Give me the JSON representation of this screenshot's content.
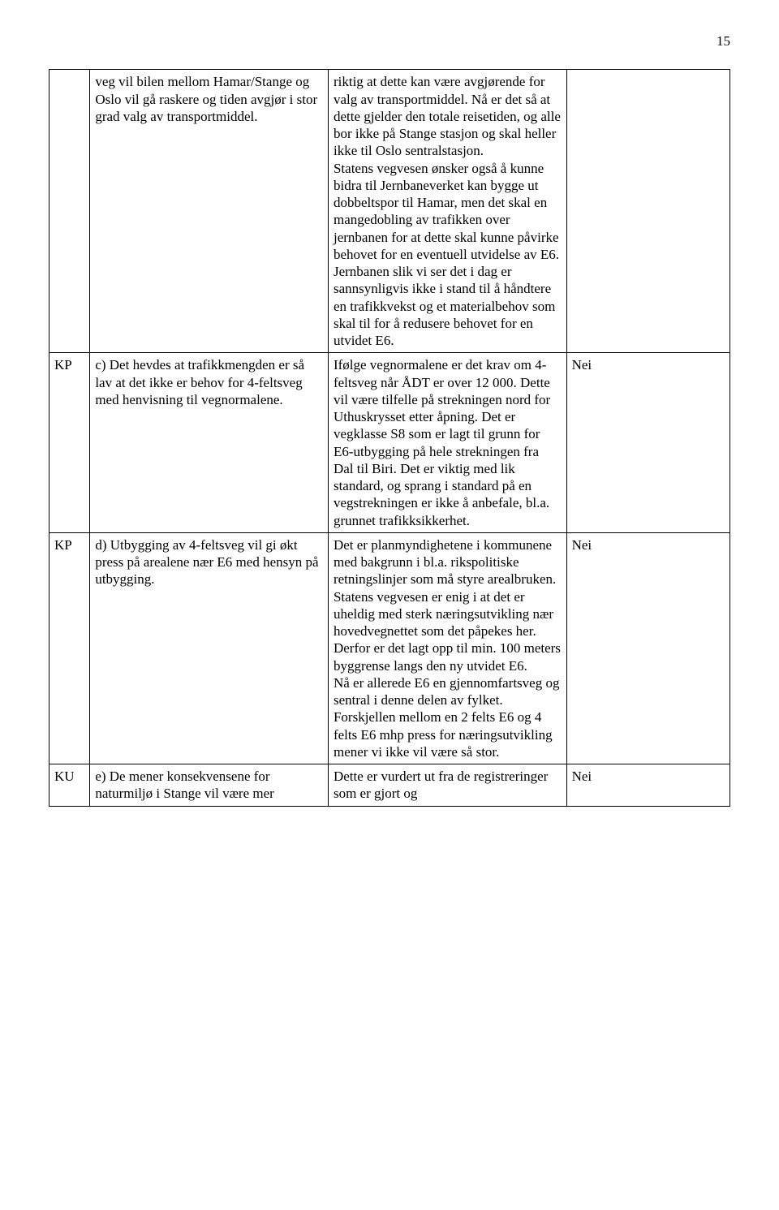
{
  "page_number": "15",
  "rows": [
    {
      "col0": "",
      "col1": "veg vil bilen mellom Hamar/Stange og Oslo vil gå raskere og tiden avgjør i stor grad valg av transportmiddel.",
      "col2": "riktig at dette kan være avgjørende for valg av transportmiddel. Nå er det så at dette gjelder den totale reisetiden, og alle bor ikke på Stange stasjon og skal heller ikke til Oslo sentralstasjon.\nStatens vegvesen ønsker også å kunne bidra til Jernbaneverket kan bygge ut dobbeltspor til Hamar, men det skal en mangedobling av trafikken over jernbanen for at dette skal kunne påvirke behovet for en eventuell utvidelse av E6. Jernbanen slik vi ser det i dag er sannsynligvis ikke i stand til å håndtere en trafikkvekst og et materialbehov som skal til for å redusere behovet for en utvidet E6.",
      "col3": ""
    },
    {
      "col0": "KP",
      "col1": "c) Det hevdes at trafikkmengden er så lav at det ikke er behov for 4-feltsveg med henvisning til vegnormalene.",
      "col2": "Ifølge vegnormalene er det krav om 4-feltsveg når ÅDT er over 12 000. Dette vil være tilfelle på strekningen nord for Uthuskrysset etter åpning. Det er vegklasse S8 som er lagt til grunn for E6-utbygging på hele strekningen fra Dal til Biri. Det er viktig med lik standard, og sprang i standard på en vegstrekningen er ikke å anbefale, bl.a. grunnet trafikksikkerhet.",
      "col3": "Nei"
    },
    {
      "col0": "KP",
      "col1": "d) Utbygging av 4-feltsveg vil gi økt press på arealene nær E6 med hensyn på utbygging.",
      "col2": "Det er planmyndighetene i kommunene med bakgrunn i bl.a. rikspolitiske retningslinjer som må styre arealbruken. Statens vegvesen er enig i at det er uheldig med sterk næringsutvikling nær hovedvegnettet som det påpekes her. Derfor er det lagt opp til min. 100 meters byggrense langs den ny utvidet E6.\nNå er allerede E6 en gjennomfartsveg og sentral i denne delen av fylket. Forskjellen mellom en 2 felts E6 og 4 felts E6 mhp press for næringsutvikling mener vi ikke vil være så stor.",
      "col3": "Nei"
    },
    {
      "col0": "KU",
      "col1": "e) De mener konsekvensene for naturmiljø i Stange vil være mer",
      "col2": "Dette er vurdert ut fra de registreringer som er gjort og",
      "col3": "Nei"
    }
  ]
}
